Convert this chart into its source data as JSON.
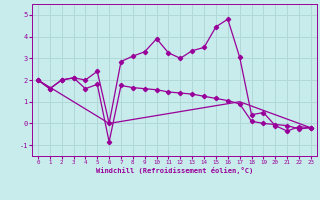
{
  "xlabel": "Windchill (Refroidissement éolien,°C)",
  "background_color": "#c8ecec",
  "line_color": "#990099",
  "grid_color": "#b0d8d8",
  "xlim": [
    -0.5,
    23.5
  ],
  "ylim": [
    -1.5,
    5.5
  ],
  "xticks": [
    0,
    1,
    2,
    3,
    4,
    5,
    6,
    7,
    8,
    9,
    10,
    11,
    12,
    13,
    14,
    15,
    16,
    17,
    18,
    19,
    20,
    21,
    22,
    23
  ],
  "yticks": [
    -1,
    0,
    1,
    2,
    3,
    4,
    5
  ],
  "series1_x": [
    0,
    1,
    2,
    3,
    4,
    5,
    6,
    7,
    8,
    9,
    10,
    11,
    12,
    13,
    14,
    15,
    16,
    17,
    18,
    19,
    20,
    21,
    22,
    23
  ],
  "series1_y": [
    2.0,
    1.6,
    2.0,
    2.1,
    2.0,
    2.4,
    0.0,
    2.85,
    3.1,
    3.3,
    3.9,
    3.25,
    3.0,
    3.35,
    3.5,
    4.45,
    4.8,
    3.05,
    0.4,
    0.5,
    -0.1,
    -0.35,
    -0.15,
    -0.2
  ],
  "series2_x": [
    0,
    1,
    2,
    3,
    4,
    5,
    6,
    7,
    8,
    9,
    10,
    11,
    12,
    13,
    14,
    15,
    16,
    17,
    18,
    19,
    20,
    21,
    22,
    23
  ],
  "series2_y": [
    2.0,
    1.6,
    2.0,
    2.1,
    1.6,
    1.8,
    -0.85,
    1.75,
    1.65,
    1.6,
    1.55,
    1.45,
    1.4,
    1.35,
    1.25,
    1.15,
    1.05,
    0.9,
    0.1,
    0.0,
    -0.05,
    -0.1,
    -0.25,
    -0.2
  ],
  "series3_x": [
    0,
    6,
    17,
    23
  ],
  "series3_y": [
    2.0,
    0.0,
    1.0,
    -0.2
  ]
}
